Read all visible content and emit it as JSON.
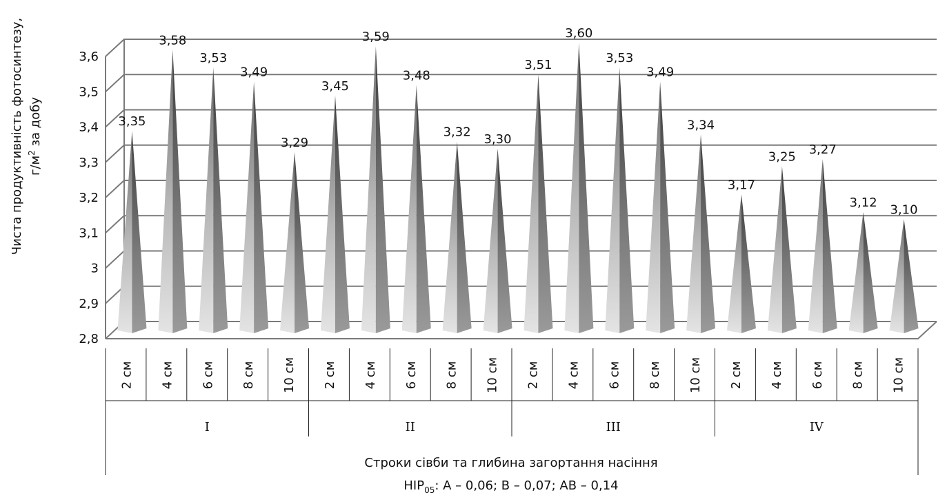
{
  "chart_data": {
    "type": "bar",
    "style": "3d-pyramid",
    "ylabel_line1": "Чиста продуктивність фотосинтезу,",
    "ylabel_line2_pre": "г/м",
    "ylabel_line2_sup": "2",
    "ylabel_line2_post": " за добу",
    "xlabel": "Строки сівби та глибина загортання насіння",
    "footnote_pre": "НІР",
    "footnote_sub": "05",
    "footnote_post": ": А – 0,06; В – 0,07; АВ – 0,14",
    "ylim": [
      2.8,
      3.6
    ],
    "yticks": [
      "2,8",
      "2,9",
      "3",
      "3,1",
      "3,2",
      "3,3",
      "3,4",
      "3,5",
      "3,6"
    ],
    "grid": true,
    "groups": [
      "I",
      "II",
      "III",
      "IV"
    ],
    "categories": [
      "2 см",
      "4 см",
      "6 см",
      "8 см",
      "10 см"
    ],
    "values": [
      [
        3.35,
        3.58,
        3.53,
        3.49,
        3.29
      ],
      [
        3.45,
        3.59,
        3.48,
        3.32,
        3.3
      ],
      [
        3.51,
        3.6,
        3.53,
        3.49,
        3.34
      ],
      [
        3.17,
        3.25,
        3.27,
        3.12,
        3.1
      ]
    ],
    "value_labels": [
      [
        "3,35",
        "3,58",
        "3,53",
        "3,49",
        "3,29"
      ],
      [
        "3,45",
        "3,59",
        "3,48",
        "3,32",
        "3,30"
      ],
      [
        "3,51",
        "3,60",
        "3,53",
        "3,49",
        "3,34"
      ],
      [
        "3,17",
        "3,25",
        "3,27",
        "3,12",
        "3,10"
      ]
    ],
    "colors": {
      "grid": "#7a7a7a",
      "pyramid_light": "#e6e6e6",
      "pyramid_mid": "#b0b0b0",
      "pyramid_dark": "#5e5e5e",
      "text": "#111111"
    }
  }
}
